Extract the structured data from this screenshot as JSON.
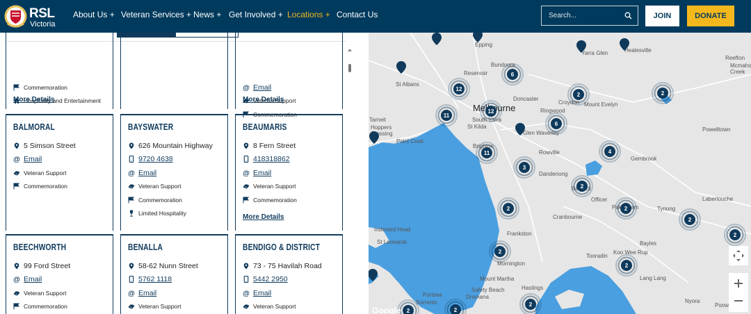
{
  "header": {
    "logo_title": "RSL",
    "logo_subtitle": "Victoria",
    "nav": [
      "About Us +",
      "Veteran Services +",
      "News +",
      "Get Involved +",
      "Locations +",
      "Contact Us"
    ],
    "search_placeholder": "Search...",
    "join": "JOIN",
    "donate": "DONATE"
  },
  "cards": [
    {
      "features": [
        "Commemoration",
        "Hospitality and Entertainment"
      ],
      "more": "More Details"
    },
    {
      "email": "Email",
      "features": [
        "Veteran Support",
        "Commemoration"
      ],
      "more": "More Details"
    },
    {
      "name": "BALMORAL",
      "address": "5 Simson Street",
      "email": "Email",
      "features": [
        "Veteran Support",
        "Commemoration"
      ]
    },
    {
      "name": "BAYSWATER",
      "address": "626 Mountain Highway",
      "phone": "9720 4638",
      "email": "Email",
      "features": [
        "Veteran Support",
        "Commemoration",
        "Limited Hospitality"
      ]
    },
    {
      "name": "BEAUMARIS",
      "address": "8 Fern Street",
      "phone": "418318862",
      "email": "Email",
      "features": [
        "Veteran Support",
        "Commemoration"
      ],
      "more": "More Details"
    },
    {
      "name": "BEECHWORTH",
      "address": "99 Ford Street",
      "email": "Email",
      "features": [
        "Veteran Support",
        "Commemoration"
      ]
    },
    {
      "name": "BENALLA",
      "address": "58-62 Nunn Street",
      "phone": "5762 1118",
      "email": "Email",
      "features": [
        "Veteran Support"
      ]
    },
    {
      "name": "BENDIGO & DISTRICT",
      "address": "73 - 75 Havilah Road",
      "phone": "5442 2950",
      "email": "Email",
      "features": [
        "Veteran Support"
      ]
    }
  ],
  "map": {
    "places": [
      "Epping",
      "Bundoora",
      "Reservoir",
      "St Albans",
      "Yarra Glen",
      "Healesville",
      "Reefton",
      "Mcmahons",
      "Creek",
      "Doncaster",
      "Croydon",
      "Mount Evelyn",
      "Ringwood",
      "Melbourne",
      "South Yarra",
      "St Kilda",
      "Glen Waverley",
      "Tarneit",
      "Hoppers",
      "Crossing",
      "Point Cook",
      "Powelltown",
      "Brighton",
      "Rowville",
      "Gembrook",
      "Dandenong",
      "Berwick",
      "Officer",
      "Labertouche",
      "Pakenham",
      "Tynong",
      "Cranbourne",
      "Frankston",
      "Indented Head",
      "St Leonards",
      "Bayles",
      "Mornington",
      "Koo Wee Rup",
      "Tooradin",
      "Lang Lang",
      "Mount Martha",
      "Hastings",
      "Safety Beach",
      "Dromana",
      "Portsea",
      "Sorrento",
      "Nyora",
      "Poowong"
    ],
    "clusters": [
      "6",
      "12",
      "2",
      "2",
      "12",
      "11",
      "6",
      "11",
      "3",
      "4",
      "2",
      "2",
      "2",
      "2",
      "2",
      "2",
      "2",
      "2",
      "2",
      "2"
    ],
    "attribution": "Google"
  }
}
